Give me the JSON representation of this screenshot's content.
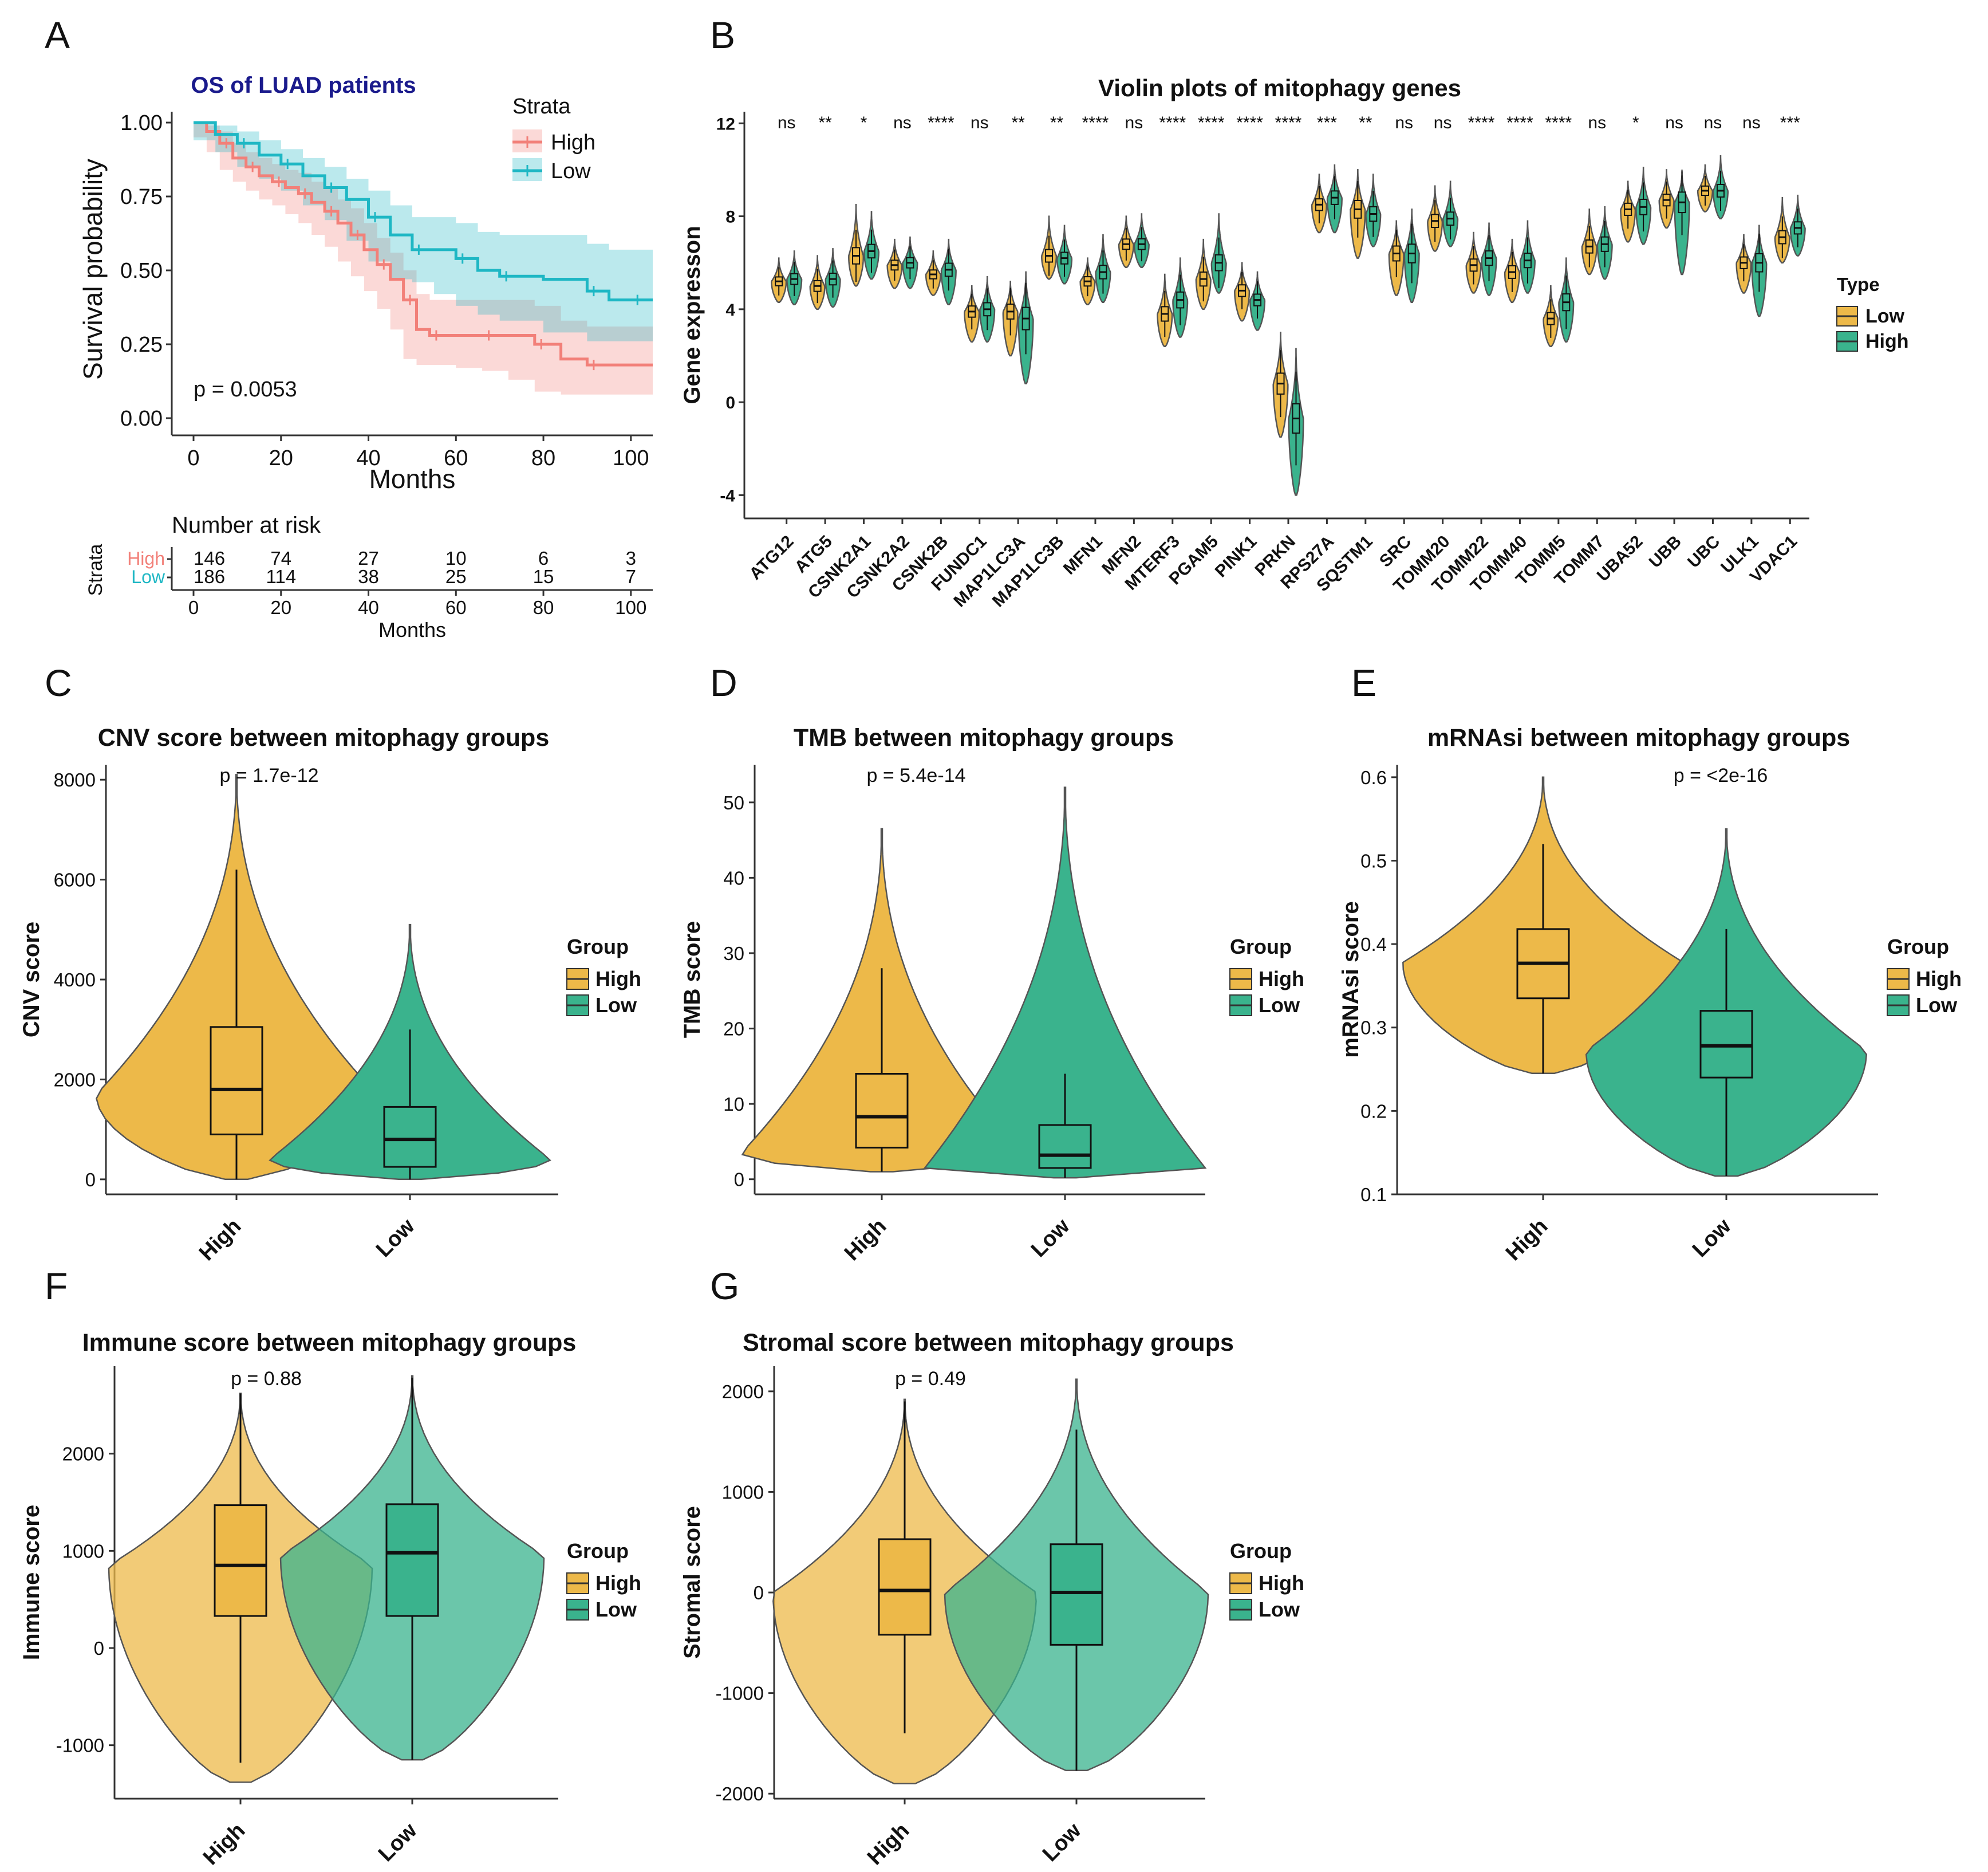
{
  "figure": {
    "colors": {
      "high": "#EDB949",
      "low": "#3AB38D",
      "km_high": "#F28079",
      "km_low": "#1EB7C4",
      "title_blue": "#1A1A8C",
      "axis": "#333333"
    }
  },
  "chart_data": [
    {
      "id": "A",
      "panel_label": "A",
      "type": "line",
      "title": "OS of LUAD patients",
      "xlabel": "Months",
      "ylabel": "Survival probability",
      "xlim": [
        0,
        105
      ],
      "ylim": [
        0,
        1
      ],
      "xticks": [
        0,
        20,
        40,
        60,
        80,
        100
      ],
      "yticks": [
        0,
        0.25,
        0.5,
        0.75,
        1.0
      ],
      "ytick_labels": [
        "0.00",
        "0.25",
        "0.50",
        "0.75",
        "1.00"
      ],
      "legend_title": "Strata",
      "pvalue": "p = 0.0053",
      "series": [
        {
          "name": "High",
          "key": "high",
          "x": [
            0,
            3,
            6,
            9,
            12,
            15,
            18,
            21,
            24,
            27,
            30,
            33,
            36,
            39,
            42,
            45,
            48,
            51,
            54,
            60,
            66,
            72,
            78,
            84,
            90,
            100,
            105
          ],
          "y": [
            1.0,
            0.97,
            0.93,
            0.88,
            0.85,
            0.82,
            0.8,
            0.78,
            0.76,
            0.73,
            0.7,
            0.66,
            0.62,
            0.57,
            0.52,
            0.47,
            0.4,
            0.3,
            0.28,
            0.28,
            0.28,
            0.28,
            0.25,
            0.2,
            0.18,
            0.18,
            0.18
          ],
          "lower": [
            1.0,
            0.95,
            0.9,
            0.84,
            0.8,
            0.77,
            0.74,
            0.72,
            0.69,
            0.66,
            0.62,
            0.58,
            0.53,
            0.48,
            0.43,
            0.37,
            0.3,
            0.2,
            0.18,
            0.18,
            0.17,
            0.16,
            0.13,
            0.09,
            0.08,
            0.08,
            0.08
          ],
          "upper": [
            1.0,
            0.99,
            0.97,
            0.93,
            0.9,
            0.88,
            0.86,
            0.84,
            0.83,
            0.8,
            0.78,
            0.74,
            0.71,
            0.66,
            0.61,
            0.56,
            0.5,
            0.42,
            0.4,
            0.4,
            0.4,
            0.4,
            0.38,
            0.33,
            0.31,
            0.31,
            0.31
          ]
        },
        {
          "name": "Low",
          "key": "low",
          "x": [
            0,
            5,
            10,
            15,
            20,
            25,
            30,
            35,
            40,
            45,
            50,
            55,
            60,
            65,
            70,
            80,
            90,
            95,
            100,
            105
          ],
          "y": [
            1.0,
            0.96,
            0.93,
            0.89,
            0.86,
            0.82,
            0.78,
            0.74,
            0.68,
            0.62,
            0.57,
            0.57,
            0.54,
            0.5,
            0.48,
            0.47,
            0.43,
            0.4,
            0.4,
            0.4
          ],
          "lower": [
            1.0,
            0.94,
            0.9,
            0.85,
            0.81,
            0.77,
            0.72,
            0.67,
            0.6,
            0.53,
            0.47,
            0.46,
            0.42,
            0.38,
            0.35,
            0.33,
            0.29,
            0.26,
            0.26,
            0.26
          ],
          "upper": [
            1.0,
            0.99,
            0.97,
            0.94,
            0.91,
            0.88,
            0.85,
            0.81,
            0.77,
            0.72,
            0.68,
            0.68,
            0.66,
            0.63,
            0.62,
            0.62,
            0.59,
            0.57,
            0.57,
            0.57
          ]
        }
      ],
      "risk_table": {
        "title": "Number at risk",
        "ylabel": "Strata",
        "xlabel": "Months",
        "times": [
          0,
          20,
          40,
          60,
          80,
          100
        ],
        "rows": [
          {
            "name": "High",
            "key": "high",
            "values": [
              146,
              74,
              27,
              10,
              6,
              3
            ]
          },
          {
            "name": "Low",
            "key": "low",
            "values": [
              186,
              114,
              38,
              25,
              15,
              7
            ]
          }
        ]
      }
    },
    {
      "id": "B",
      "panel_label": "B",
      "type": "violin",
      "title": "Violin plots of mitophagy genes",
      "xlabel": "",
      "ylabel": "Gene expresson",
      "ylim": [
        -5,
        12.5
      ],
      "yticks": [
        -4,
        0,
        4,
        8,
        12
      ],
      "legend_title": "Type",
      "groups": [
        {
          "name": "Low",
          "key": "high"
        },
        {
          "name": "High",
          "key": "low"
        }
      ],
      "genes": [
        "ATG12",
        "ATG5",
        "CSNK2A1",
        "CSNK2A2",
        "CSNK2B",
        "FUNDC1",
        "MAP1LC3A",
        "MAP1LC3B",
        "MFN1",
        "MFN2",
        "MTERF3",
        "PGAM5",
        "PINK1",
        "PRKN",
        "RPS27A",
        "SQSTM1",
        "SRC",
        "TOMM20",
        "TOMM22",
        "TOMM40",
        "TOMM5",
        "TOMM7",
        "UBA52",
        "UBB",
        "UBC",
        "ULK1",
        "VDAC1"
      ],
      "significance": [
        "ns",
        "**",
        "*",
        "ns",
        "****",
        "ns",
        "**",
        "**",
        "****",
        "ns",
        "****",
        "****",
        "****",
        "****",
        "***",
        "**",
        "ns",
        "ns",
        "****",
        "****",
        "****",
        "ns",
        "*",
        "ns",
        "ns",
        "ns",
        "***"
      ],
      "medians_low_group": [
        5.2,
        5.0,
        6.3,
        5.9,
        5.5,
        3.9,
        3.9,
        6.3,
        5.2,
        6.8,
        3.8,
        5.3,
        4.8,
        0.8,
        8.5,
        8.3,
        6.4,
        7.8,
        5.9,
        5.6,
        3.6,
        6.7,
        8.3,
        8.7,
        9.1,
        6.0,
        7.1
      ],
      "medians_high_group": [
        5.3,
        5.3,
        6.5,
        6.0,
        5.7,
        4.0,
        3.6,
        6.2,
        5.6,
        6.8,
        4.4,
        6.0,
        4.4,
        -0.7,
        8.8,
        8.1,
        6.4,
        7.9,
        6.2,
        6.1,
        4.3,
        6.8,
        8.4,
        8.6,
        9.1,
        6.0,
        7.5
      ],
      "ranges_low_group": [
        [
          4.3,
          6.2
        ],
        [
          4.0,
          6.3
        ],
        [
          5.0,
          8.5
        ],
        [
          4.9,
          7.0
        ],
        [
          4.6,
          6.5
        ],
        [
          2.6,
          5.0
        ],
        [
          2.0,
          5.2
        ],
        [
          5.3,
          8.0
        ],
        [
          4.2,
          6.2
        ],
        [
          5.8,
          8.0
        ],
        [
          2.4,
          5.5
        ],
        [
          4.0,
          7.0
        ],
        [
          3.5,
          6.0
        ],
        [
          -1.5,
          3.0
        ],
        [
          7.3,
          9.8
        ],
        [
          6.2,
          10.0
        ],
        [
          4.6,
          7.8
        ],
        [
          6.5,
          9.3
        ],
        [
          4.7,
          7.3
        ],
        [
          4.3,
          7.0
        ],
        [
          2.4,
          5.0
        ],
        [
          5.5,
          8.3
        ],
        [
          6.9,
          9.5
        ],
        [
          7.5,
          10.0
        ],
        [
          8.2,
          10.2
        ],
        [
          4.7,
          7.2
        ],
        [
          6.0,
          8.8
        ]
      ],
      "ranges_high_group": [
        [
          4.2,
          6.5
        ],
        [
          4.1,
          6.6
        ],
        [
          5.3,
          8.2
        ],
        [
          4.9,
          7.1
        ],
        [
          4.2,
          7.0
        ],
        [
          2.6,
          5.4
        ],
        [
          0.8,
          5.6
        ],
        [
          5.1,
          7.6
        ],
        [
          4.3,
          7.2
        ],
        [
          5.8,
          8.1
        ],
        [
          2.8,
          6.2
        ],
        [
          4.7,
          8.1
        ],
        [
          3.1,
          5.6
        ],
        [
          -4.0,
          2.3
        ],
        [
          7.3,
          10.2
        ],
        [
          6.7,
          9.8
        ],
        [
          4.3,
          8.3
        ],
        [
          6.7,
          9.5
        ],
        [
          4.6,
          7.7
        ],
        [
          4.7,
          7.8
        ],
        [
          2.6,
          6.2
        ],
        [
          5.3,
          8.4
        ],
        [
          6.8,
          10.1
        ],
        [
          5.5,
          9.9
        ],
        [
          7.9,
          10.6
        ],
        [
          3.7,
          7.6
        ],
        [
          6.3,
          8.9
        ]
      ]
    },
    {
      "id": "C",
      "panel_label": "C",
      "type": "violin",
      "title": "CNV score between mitophagy groups",
      "xlabel": "",
      "ylabel": "CNV score",
      "ylim": [
        -300,
        8300
      ],
      "yticks": [
        0,
        2000,
        4000,
        6000,
        8000
      ],
      "legend_title": "Group",
      "categories": [
        "High",
        "Low"
      ],
      "pvalue": "p = 1.7e-12",
      "stats": [
        {
          "name": "High",
          "key": "high",
          "min": 0,
          "q1": 900,
          "median": 1800,
          "q3": 3050,
          "whisker_low": 0,
          "whisker_high": 6200,
          "max": 8100,
          "mode": 1700
        },
        {
          "name": "Low",
          "key": "low",
          "min": 0,
          "q1": 250,
          "median": 800,
          "q3": 1450,
          "whisker_low": 0,
          "whisker_high": 3000,
          "max": 5100,
          "mode": 400
        }
      ]
    },
    {
      "id": "D",
      "panel_label": "D",
      "type": "violin",
      "title": "TMB between mitophagy groups",
      "xlabel": "",
      "ylabel": "TMB score",
      "ylim": [
        -2,
        55
      ],
      "yticks": [
        0,
        10,
        20,
        30,
        40,
        50
      ],
      "legend_title": "Group",
      "categories": [
        "High",
        "Low"
      ],
      "pvalue": "p = 5.4e-14",
      "stats": [
        {
          "name": "High",
          "key": "high",
          "min": 1,
          "q1": 4.2,
          "median": 8.3,
          "q3": 14,
          "whisker_low": 1,
          "whisker_high": 28,
          "max": 46.5,
          "mode": 3.5
        },
        {
          "name": "Low",
          "key": "low",
          "min": 0.2,
          "q1": 1.5,
          "median": 3.2,
          "q3": 7.2,
          "whisker_low": 0.2,
          "whisker_high": 14,
          "max": 52,
          "mode": 1.5
        }
      ]
    },
    {
      "id": "E",
      "panel_label": "E",
      "type": "violin",
      "title": "mRNAsi between mitophagy groups",
      "xlabel": "",
      "ylabel": "mRNAsi score",
      "ylim": [
        0.1,
        0.615
      ],
      "yticks": [
        0.1,
        0.2,
        0.3,
        0.4,
        0.5,
        0.6
      ],
      "legend_title": "Group",
      "categories": [
        "High",
        "Low"
      ],
      "pvalue": "p = <2e-16",
      "stats": [
        {
          "name": "High",
          "key": "high",
          "min": 0.245,
          "q1": 0.335,
          "median": 0.377,
          "q3": 0.418,
          "whisker_low": 0.245,
          "whisker_high": 0.52,
          "max": 0.6,
          "mode": 0.378
        },
        {
          "name": "Low",
          "key": "low",
          "min": 0.122,
          "q1": 0.24,
          "median": 0.278,
          "q3": 0.32,
          "whisker_low": 0.122,
          "whisker_high": 0.418,
          "max": 0.538,
          "mode": 0.272
        }
      ]
    },
    {
      "id": "F",
      "panel_label": "F",
      "type": "violin",
      "title": "Immune score between mitophagy groups",
      "xlabel": "",
      "ylabel": "Immune score",
      "ylim": [
        -1550,
        2900
      ],
      "yticks": [
        -1000,
        0,
        1000,
        2000
      ],
      "legend_title": "Group",
      "categories": [
        "High",
        "Low"
      ],
      "pvalue": "p = 0.88",
      "stats": [
        {
          "name": "High",
          "key": "high",
          "min": -1380,
          "q1": 330,
          "median": 850,
          "q3": 1470,
          "whisker_low": -1180,
          "whisker_high": 2620,
          "max": 2620,
          "mode": 850
        },
        {
          "name": "Low",
          "key": "low",
          "min": -1150,
          "q1": 330,
          "median": 980,
          "q3": 1480,
          "whisker_low": -1150,
          "whisker_high": 2780,
          "max": 2800,
          "mode": 950
        }
      ]
    },
    {
      "id": "G",
      "panel_label": "G",
      "type": "violin",
      "title": "Stromal score between mitophagy groups",
      "xlabel": "",
      "ylabel": "Stromal score",
      "ylim": [
        -2050,
        2250
      ],
      "yticks": [
        -2000,
        -1000,
        0,
        1000,
        2000
      ],
      "legend_title": "Group",
      "categories": [
        "High",
        "Low"
      ],
      "pvalue": "p = 0.49",
      "stats": [
        {
          "name": "High",
          "key": "high",
          "min": -1900,
          "q1": -420,
          "median": 20,
          "q3": 530,
          "whisker_low": -1400,
          "whisker_high": 1900,
          "max": 1920,
          "mode": 0
        },
        {
          "name": "Low",
          "key": "low",
          "min": -1770,
          "q1": -520,
          "median": 0,
          "q3": 480,
          "whisker_low": -1770,
          "whisker_high": 1620,
          "max": 2120,
          "mode": 0
        }
      ]
    }
  ]
}
